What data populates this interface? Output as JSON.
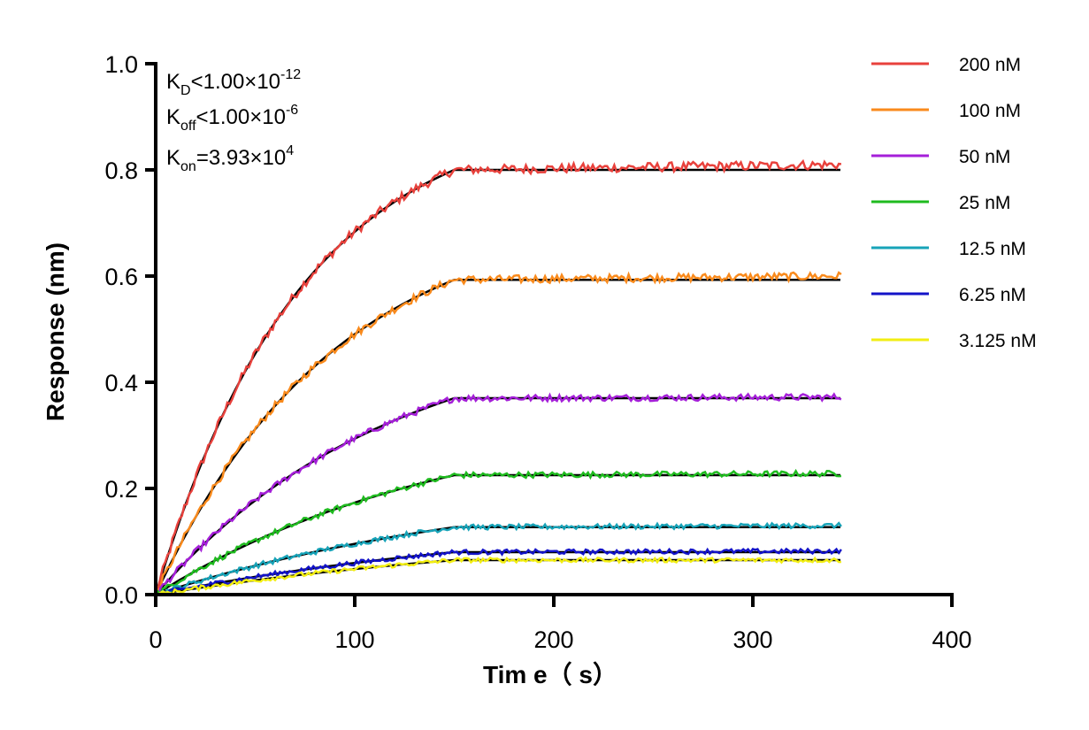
{
  "chart_data": {
    "type": "line",
    "xlabel": "Tim e（ s）",
    "ylabel": "Response (nm)",
    "xlim": [
      0,
      400
    ],
    "ylim": [
      0,
      1.0
    ],
    "x_ticks": [
      "0",
      "100",
      "200",
      "300",
      "400"
    ],
    "y_ticks": [
      "0.0",
      "0.2",
      "0.4",
      "0.6",
      "0.8",
      "1.0"
    ],
    "grid": false,
    "legend_position": "right",
    "annotations": {
      "kd": {
        "main": "K",
        "sub": "D",
        "rel": "<1.00×10",
        "exp": "-12"
      },
      "koff": {
        "main": "K",
        "sub": "off",
        "rel": "<1.00×10",
        "exp": "-6"
      },
      "kon": {
        "main": "K",
        "sub": "on",
        "rel": "=3.93×10",
        "exp": "4"
      }
    },
    "association_end": 150,
    "x_end": 345,
    "fit_color": "#000000",
    "series": [
      {
        "name": "200 nM",
        "color": "#e8413c",
        "plateau": 0.8,
        "end_value": 0.81
      },
      {
        "name": "100 nM",
        "color": "#f98a1c",
        "plateau": 0.593,
        "end_value": 0.6
      },
      {
        "name": "50 nM",
        "color": "#a51fd9",
        "plateau": 0.37,
        "end_value": 0.372
      },
      {
        "name": "25 nM",
        "color": "#1fbb1f",
        "plateau": 0.225,
        "end_value": 0.228
      },
      {
        "name": "12.5 nM",
        "color": "#17a3b8",
        "plateau": 0.127,
        "end_value": 0.13
      },
      {
        "name": "6.25 nM",
        "color": "#1313c8",
        "plateau": 0.08,
        "end_value": 0.082
      },
      {
        "name": "3.125 nM",
        "color": "#f2ee12",
        "plateau": 0.065,
        "end_value": 0.065
      }
    ]
  }
}
